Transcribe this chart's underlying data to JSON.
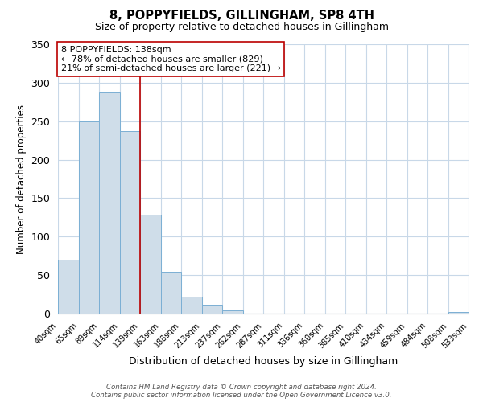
{
  "title": "8, POPPYFIELDS, GILLINGHAM, SP8 4TH",
  "subtitle": "Size of property relative to detached houses in Gillingham",
  "xlabel": "Distribution of detached houses by size in Gillingham",
  "ylabel": "Number of detached properties",
  "bar_values": [
    70,
    250,
    287,
    237,
    128,
    54,
    22,
    11,
    4,
    0,
    0,
    0,
    0,
    0,
    0,
    0,
    0,
    0,
    0,
    2
  ],
  "bar_labels": [
    "40sqm",
    "65sqm",
    "89sqm",
    "114sqm",
    "139sqm",
    "163sqm",
    "188sqm",
    "213sqm",
    "237sqm",
    "262sqm",
    "287sqm",
    "311sqm",
    "336sqm",
    "360sqm",
    "385sqm",
    "410sqm",
    "434sqm",
    "459sqm",
    "484sqm",
    "508sqm",
    "533sqm"
  ],
  "bar_color": "#cfdde9",
  "bar_edge_color": "#7bafd4",
  "property_line_x": 4,
  "property_line_color": "#bb0000",
  "annotation_text": "8 POPPYFIELDS: 138sqm\n← 78% of detached houses are smaller (829)\n21% of semi-detached houses are larger (221) →",
  "annotation_box_color": "#ffffff",
  "annotation_box_edge": "#bb0000",
  "ylim": [
    0,
    350
  ],
  "yticks": [
    0,
    50,
    100,
    150,
    200,
    250,
    300,
    350
  ],
  "footnote": "Contains HM Land Registry data © Crown copyright and database right 2024.\nContains public sector information licensed under the Open Government Licence v3.0.",
  "background_color": "#ffffff",
  "grid_color": "#c8d8e8"
}
